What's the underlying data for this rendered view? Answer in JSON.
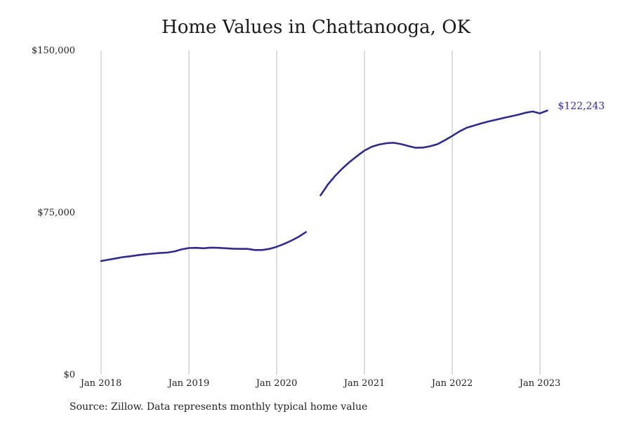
{
  "chart_data": {
    "type": "line",
    "title": "Home Values in Chattanooga, OK",
    "source": "Source: Zillow. Data represents monthly typical home value",
    "xlabel": "",
    "ylabel": "",
    "ylim": [
      0,
      150000
    ],
    "xlim": [
      "2018-01",
      "2023-05"
    ],
    "y_ticks": [
      {
        "value": 0,
        "label": "$0"
      },
      {
        "value": 75000,
        "label": "$75,000"
      },
      {
        "value": 150000,
        "label": "$150,000"
      }
    ],
    "x_ticks": [
      {
        "value": "2018-01",
        "label": "Jan 2018"
      },
      {
        "value": "2019-01",
        "label": "Jan 2019"
      },
      {
        "value": "2020-01",
        "label": "Jan 2020"
      },
      {
        "value": "2021-01",
        "label": "Jan 2021"
      },
      {
        "value": "2022-01",
        "label": "Jan 2022"
      },
      {
        "value": "2023-01",
        "label": "Jan 2023"
      }
    ],
    "grid": {
      "vertical": true,
      "horizontal": false
    },
    "line_color": "#2e2b8a",
    "grid_color": "#bdbdbd",
    "end_label": "$122,243",
    "series": [
      {
        "segments": [
          [
            [
              "2018-01",
              52600
            ],
            [
              "2018-02",
              53200
            ],
            [
              "2018-03",
              53800
            ],
            [
              "2018-04",
              54400
            ],
            [
              "2018-05",
              54800
            ],
            [
              "2018-06",
              55300
            ],
            [
              "2018-07",
              55700
            ],
            [
              "2018-08",
              56000
            ],
            [
              "2018-09",
              56300
            ],
            [
              "2018-10",
              56500
            ],
            [
              "2018-11",
              57000
            ],
            [
              "2018-12",
              58000
            ],
            [
              "2019-01",
              58600
            ],
            [
              "2019-02",
              58700
            ],
            [
              "2019-03",
              58500
            ],
            [
              "2019-04",
              58800
            ],
            [
              "2019-05",
              58700
            ],
            [
              "2019-06",
              58500
            ],
            [
              "2019-07",
              58300
            ],
            [
              "2019-08",
              58200
            ],
            [
              "2019-09",
              58200
            ],
            [
              "2019-10",
              57700
            ],
            [
              "2019-11",
              57700
            ],
            [
              "2019-12",
              58200
            ],
            [
              "2020-01",
              59200
            ],
            [
              "2020-02",
              60500
            ],
            [
              "2020-03",
              62000
            ],
            [
              "2020-04",
              63800
            ],
            [
              "2020-05",
              66000
            ]
          ],
          [
            [
              "2020-07",
              83000
            ],
            [
              "2020-08",
              88000
            ],
            [
              "2020-09",
              92000
            ],
            [
              "2020-10",
              95500
            ],
            [
              "2020-11",
              98500
            ],
            [
              "2020-12",
              101200
            ],
            [
              "2021-01",
              103700
            ],
            [
              "2021-02",
              105500
            ],
            [
              "2021-03",
              106500
            ],
            [
              "2021-04",
              107100
            ],
            [
              "2021-05",
              107300
            ],
            [
              "2021-06",
              106700
            ],
            [
              "2021-07",
              105800
            ],
            [
              "2021-08",
              105000
            ],
            [
              "2021-09",
              105100
            ],
            [
              "2021-10",
              105700
            ],
            [
              "2021-11",
              106700
            ],
            [
              "2021-12",
              108500
            ],
            [
              "2022-01",
              110500
            ],
            [
              "2022-02",
              112600
            ],
            [
              "2022-03",
              114300
            ],
            [
              "2022-04",
              115300
            ],
            [
              "2022-05",
              116300
            ],
            [
              "2022-06",
              117200
            ],
            [
              "2022-07",
              118000
            ],
            [
              "2022-08",
              118800
            ],
            [
              "2022-09",
              119500
            ],
            [
              "2022-10",
              120300
            ],
            [
              "2022-11",
              121200
            ],
            [
              "2022-12",
              121800
            ],
            [
              "2023-01",
              120900
            ],
            [
              "2023-02",
              122243
            ]
          ]
        ]
      }
    ]
  }
}
